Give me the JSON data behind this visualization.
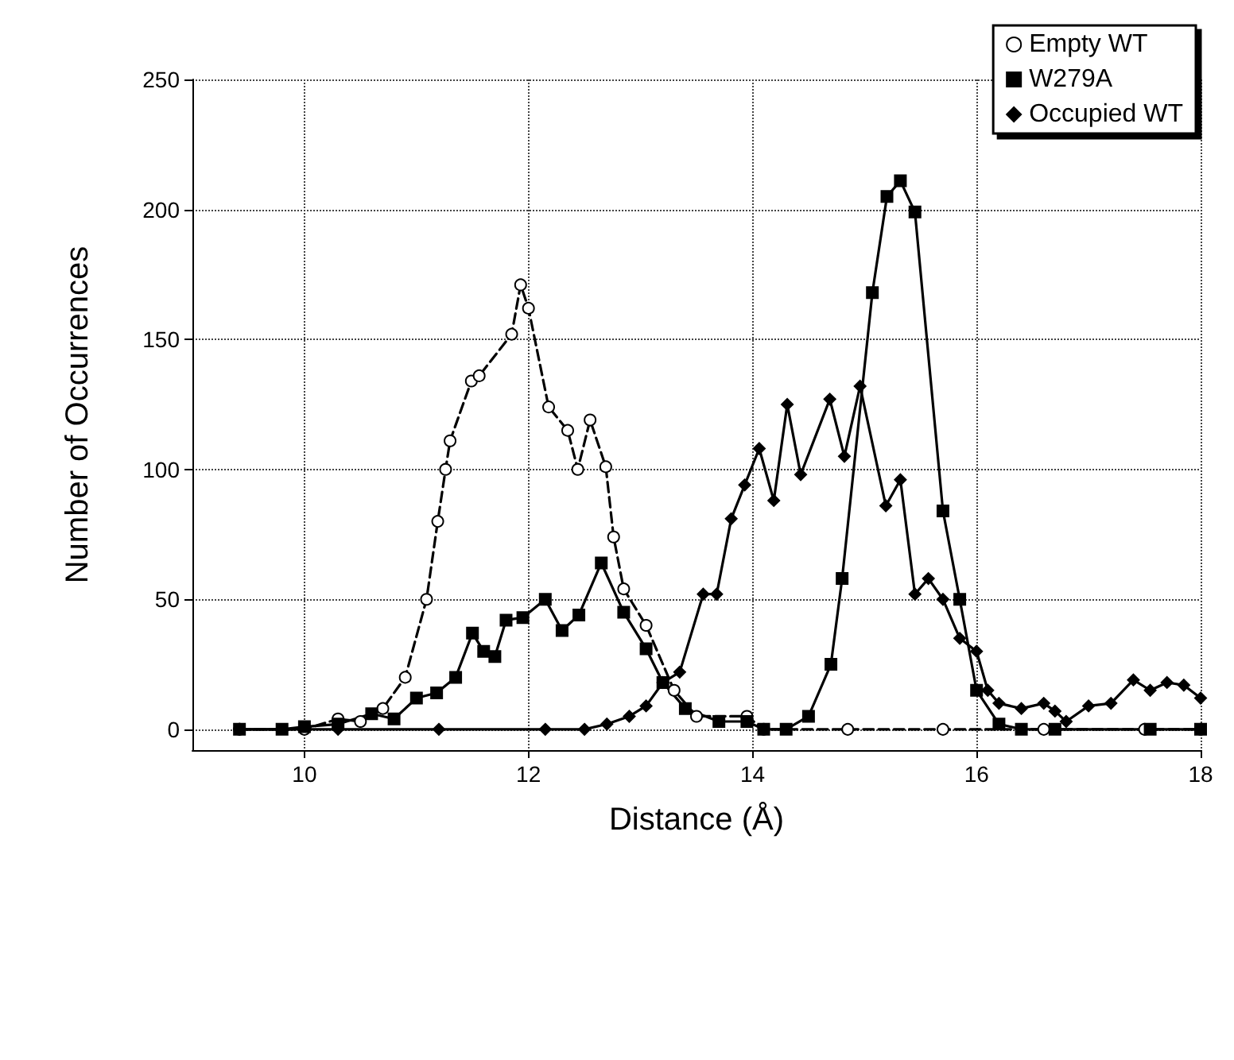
{
  "chart_data": {
    "type": "line",
    "xlabel": "Distance (Å)",
    "ylabel": "Number of Occurrences",
    "xlim": [
      9,
      18
    ],
    "xticks": [
      10,
      12,
      14,
      16,
      18
    ],
    "ylim": [
      -8,
      250
    ],
    "yticks": [
      0,
      50,
      100,
      150,
      200,
      250
    ],
    "grid": true,
    "legend": "top right",
    "series": [
      {
        "name": "Empty WT",
        "color": "#000000",
        "marker": "circle",
        "line_style": "dashed",
        "x": [
          9.42,
          10.0,
          10.3,
          10.5,
          10.7,
          10.9,
          11.09,
          11.19,
          11.26,
          11.3,
          11.49,
          11.56,
          11.85,
          11.93,
          12.0,
          12.18,
          12.35,
          12.44,
          12.55,
          12.69,
          12.76,
          12.85,
          13.05,
          13.3,
          13.5,
          13.95,
          14.1,
          14.85,
          15.7,
          16.6,
          17.5,
          18
        ],
        "values": [
          0,
          0,
          4,
          3,
          8,
          20,
          50,
          80,
          100,
          111,
          134,
          136,
          152,
          171,
          162,
          124,
          115,
          100,
          119,
          101,
          74,
          54,
          40,
          15,
          5,
          5,
          0,
          0,
          0,
          0,
          0,
          0
        ]
      },
      {
        "name": "W279A",
        "color": "#000000",
        "marker": "square",
        "line_style": "solid",
        "x": [
          9.42,
          9.8,
          10.0,
          10.3,
          10.6,
          10.8,
          11.0,
          11.18,
          11.35,
          11.5,
          11.6,
          11.7,
          11.8,
          11.95,
          12.15,
          12.3,
          12.45,
          12.65,
          12.85,
          13.05,
          13.2,
          13.4,
          13.7,
          13.95,
          14.1,
          14.3,
          14.5,
          14.7,
          14.8,
          15.07,
          15.2,
          15.32,
          15.45,
          15.7,
          15.85,
          16.0,
          16.2,
          16.4,
          16.7,
          17.55,
          18
        ],
        "values": [
          0,
          0,
          1,
          2,
          6,
          4,
          12,
          14,
          20,
          37,
          30,
          28,
          42,
          43,
          50,
          38,
          44,
          64,
          45,
          31,
          18,
          8,
          3,
          3,
          0,
          0,
          5,
          25,
          58,
          168,
          205,
          211,
          199,
          84,
          50,
          15,
          2,
          0,
          0,
          0,
          0
        ]
      },
      {
        "name": "Occupied WT",
        "color": "#000000",
        "marker": "diamond",
        "line_style": "solid",
        "x": [
          9.42,
          10.3,
          11.2,
          12.15,
          12.5,
          12.7,
          12.9,
          13.05,
          13.2,
          13.35,
          13.56,
          13.68,
          13.81,
          13.93,
          14.06,
          14.19,
          14.31,
          14.43,
          14.69,
          14.82,
          14.96,
          15.19,
          15.32,
          15.45,
          15.57,
          15.7,
          15.85,
          16.0,
          16.1,
          16.2,
          16.4,
          16.6,
          16.7,
          16.8,
          17.0,
          17.2,
          17.4,
          17.55,
          17.7,
          17.85,
          18
        ],
        "values": [
          0,
          0,
          0,
          0,
          0,
          2,
          5,
          9,
          18,
          22,
          52,
          52,
          81,
          94,
          108,
          88,
          125,
          98,
          127,
          105,
          132,
          86,
          96,
          52,
          58,
          50,
          35,
          30,
          15,
          10,
          8,
          10,
          7,
          3,
          9,
          10,
          19,
          15,
          18,
          17,
          12
        ]
      }
    ]
  }
}
